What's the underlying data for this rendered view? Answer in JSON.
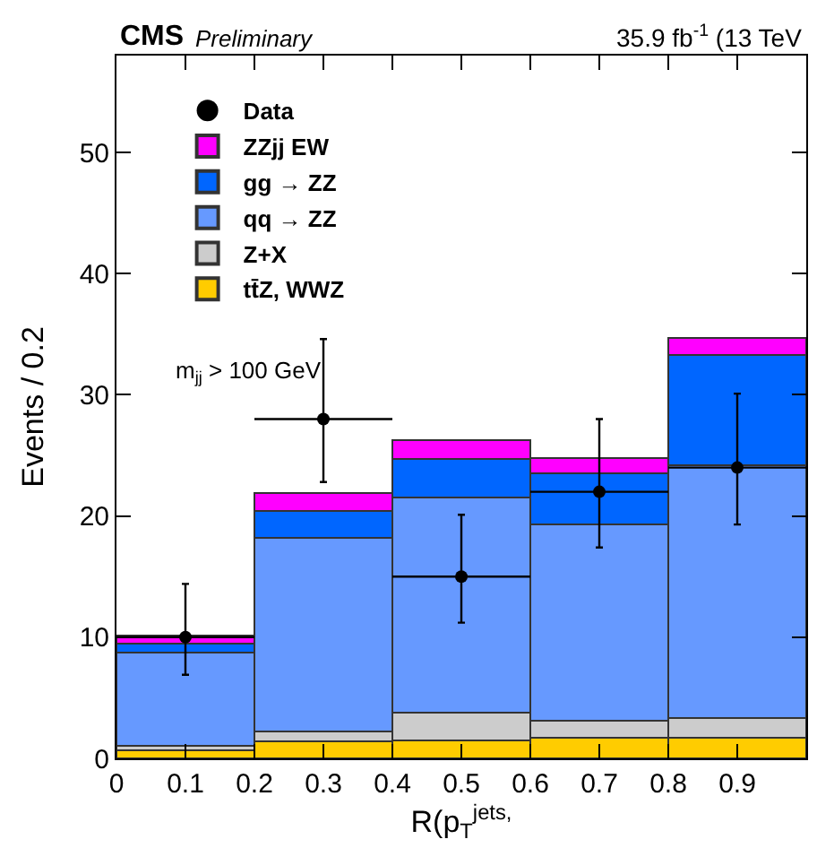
{
  "chart_data": {
    "type": "bar",
    "title": "CMS",
    "subtitle": "Preliminary",
    "xlabel": "R(p$_{T}$$^{jets,}$",
    "ylabel": "Events / 0.2",
    "annotations": [
      "35.9 fb$^{-1}$ (13 TeV",
      "m$_{jj}$ > 100 GeV"
    ],
    "x": [
      0.1,
      0.3,
      0.5,
      0.7,
      0.9
    ],
    "stacked": true,
    "series": [
      {
        "name": "tt̄Z, WWZ",
        "color": "#ffcc00",
        "values": [
          0.7,
          1.4,
          1.5,
          1.7,
          1.7
        ]
      },
      {
        "name": "Z+X",
        "color": "#cccccc",
        "values": [
          0.3,
          0.8,
          2.3,
          1.4,
          1.6
        ]
      },
      {
        "name": "qq → ZZ",
        "color": "#6699ff",
        "values": [
          7.7,
          16.0,
          17.7,
          16.2,
          20.9
        ]
      },
      {
        "name": "gg → ZZ",
        "color": "#0066ff",
        "values": [
          0.8,
          2.2,
          3.2,
          4.2,
          9.1
        ]
      },
      {
        "name": "ZZjj EW",
        "color": "#ff00ff",
        "values": [
          0.6,
          1.5,
          1.6,
          1.3,
          1.4
        ]
      },
      {
        "name": "Data",
        "type": "scatter",
        "color": "#000000",
        "x": [
          0.1,
          0.3,
          0.5,
          0.7,
          0.9
        ],
        "values": [
          10,
          28,
          15,
          22,
          24
        ],
        "errors": [
          [
            6.9,
            14.4
          ],
          [
            22.8,
            34.6
          ],
          [
            11.2,
            20.1
          ],
          [
            17.4,
            28.0
          ],
          [
            19.3,
            30.1
          ]
        ],
        "xerrors": [
          0.1,
          0.1,
          0.1,
          0.1,
          0.1
        ]
      }
    ],
    "xlim": [
      0,
      1
    ],
    "xticks": [
      0,
      0.1,
      0.2,
      0.3,
      0.4,
      0.5,
      0.6,
      0.7,
      0.8,
      0.9
    ],
    "ylim": [
      0,
      58
    ],
    "yticks": [
      0,
      10,
      20,
      30,
      40,
      50
    ],
    "legend": "top left",
    "marker": "circle"
  }
}
